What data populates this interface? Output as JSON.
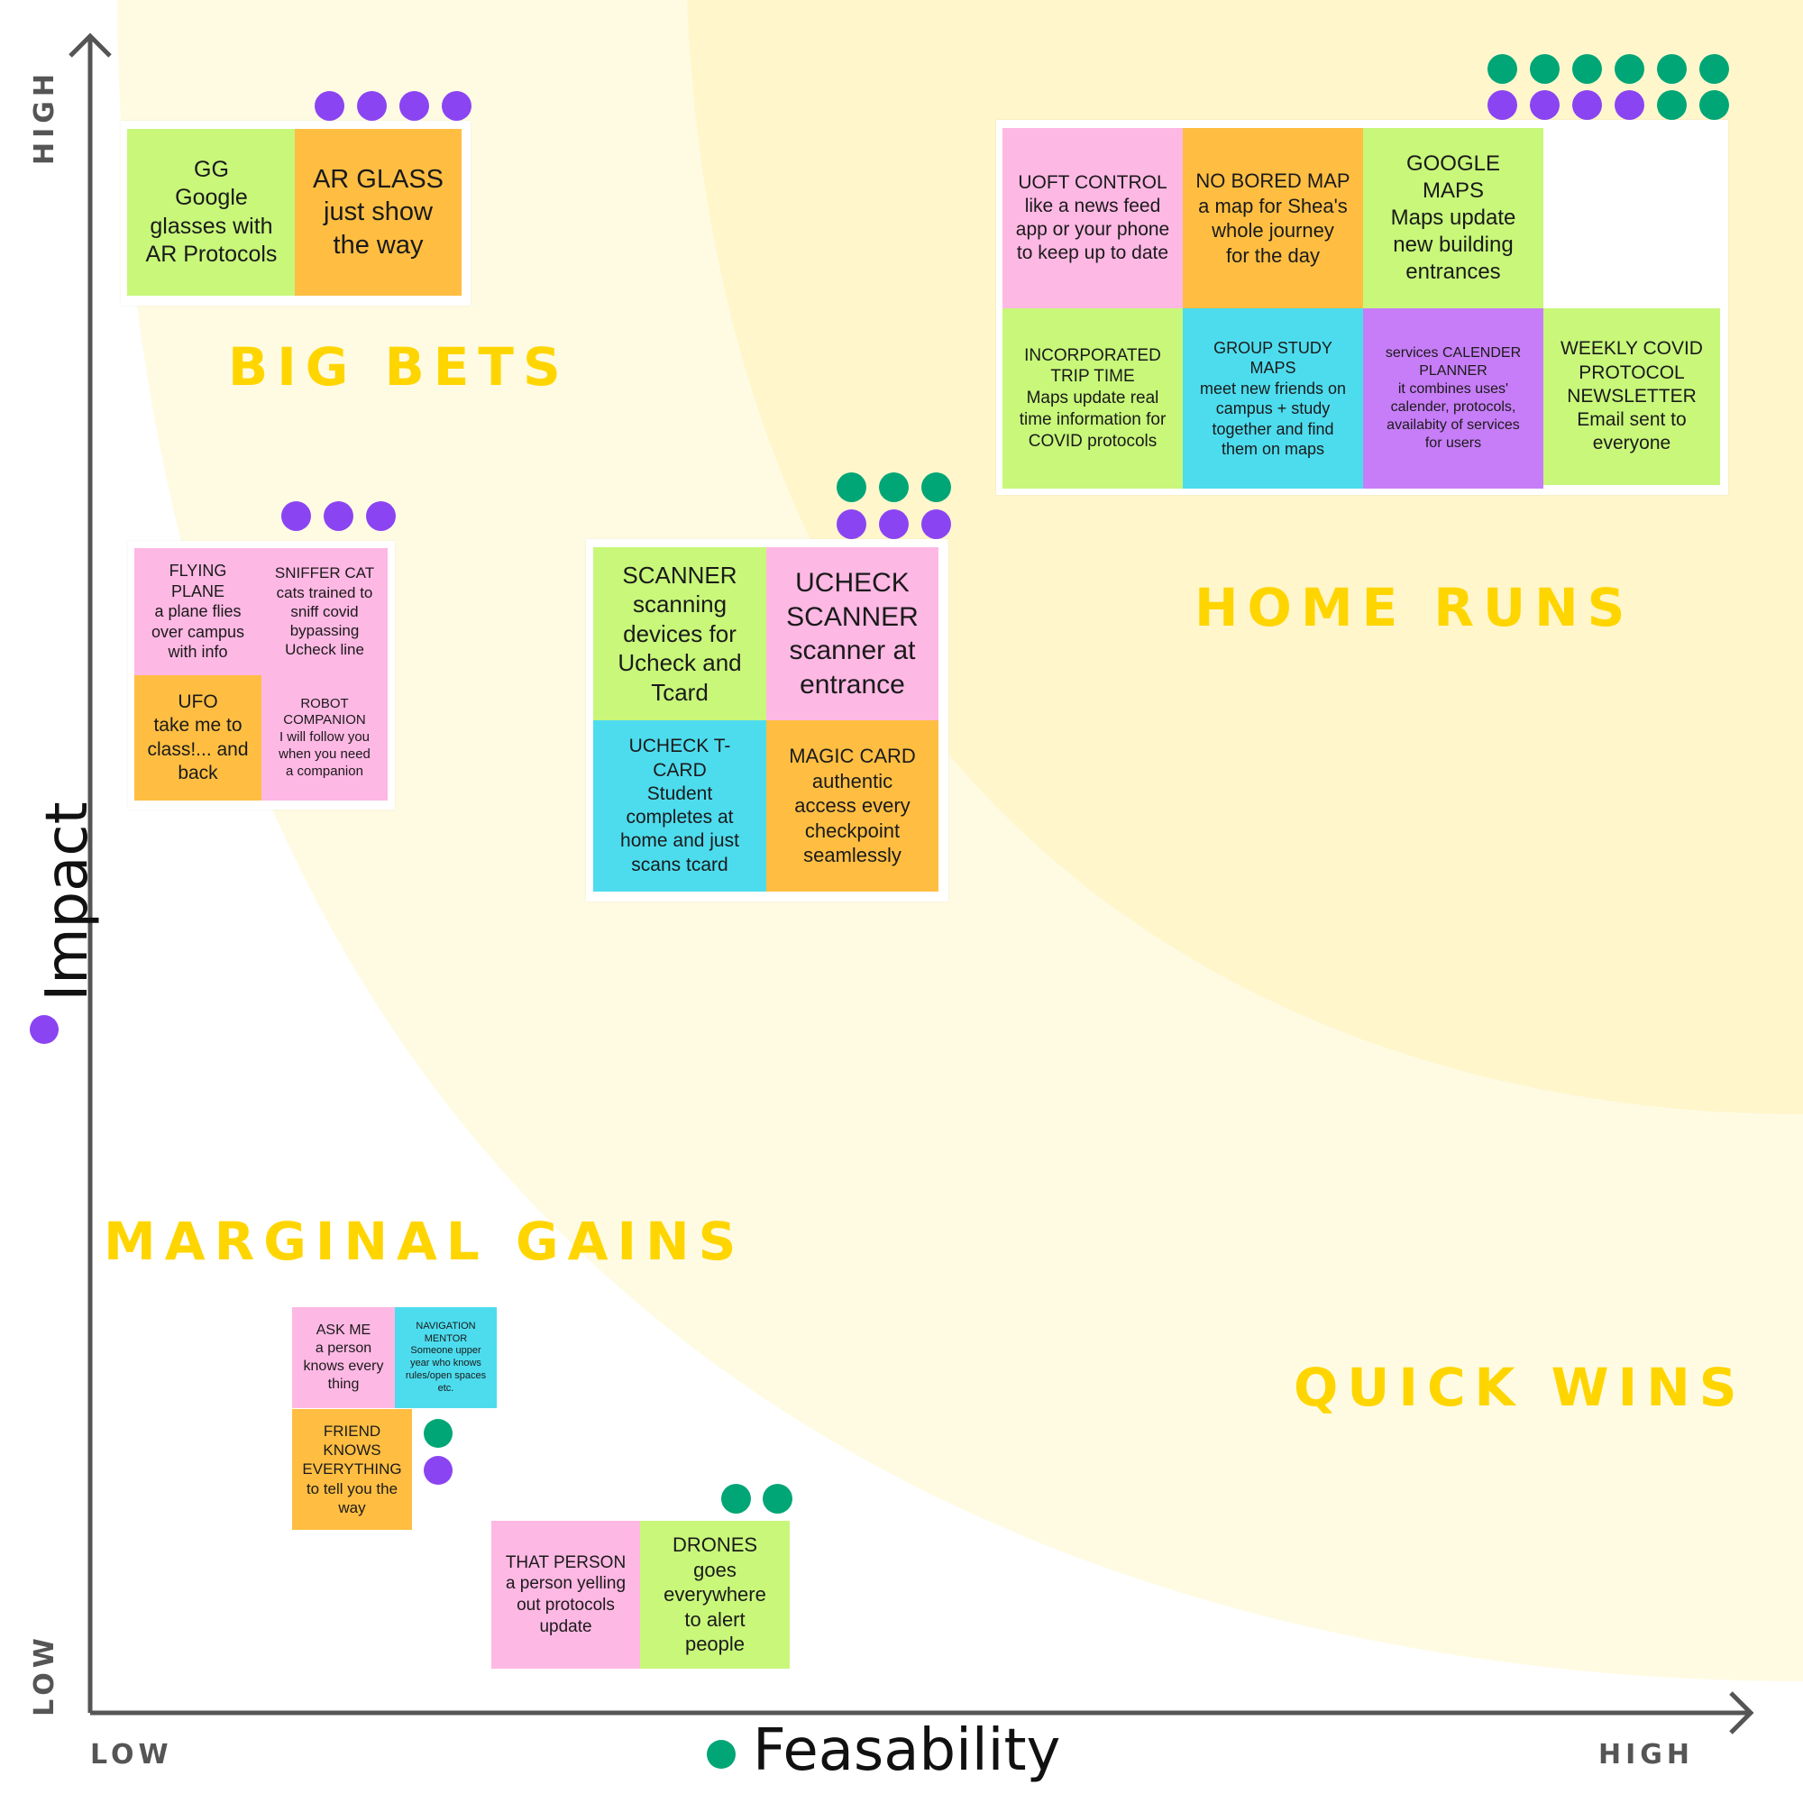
{
  "axes": {
    "y_title": "Impact",
    "x_title": "Feasability",
    "y_high": "HIGH",
    "y_low": "LOW",
    "x_low": "LOW",
    "x_high": "HIGH"
  },
  "quadrants": {
    "big_bets": "BIG BETS",
    "home_runs": "HOME RUNS",
    "marginal_gains": "MARGINAL GAINS",
    "quick_wins": "QUICK WINS"
  },
  "colors": {
    "green_note": "#C8F77A",
    "orange_note": "#FFBE42",
    "pink_note": "#FEB8E4",
    "cyan_note": "#4DDCEE",
    "purple_note": "#C77DF7",
    "impact_dot": "#8B44F2",
    "feasibility_dot": "#00A676",
    "label_yellow": "#FFD500",
    "band_outer": "#FFFBE3",
    "band_inner": "#FFF6CC"
  },
  "notes": {
    "gg": "GG\nGoogle\nglasses with\nAR Protocols",
    "ar_glass": "AR GLASS\njust show\nthe way",
    "flying_plane": "FLYING\nPLANE\na plane flies\nover campus\nwith info",
    "sniffer_cat": "SNIFFER CAT\ncats trained to\nsniff covid\nbypassing\nUcheck line",
    "ufo": "UFO\ntake me to\nclass!... and\nback",
    "robot_companion": "ROBOT\nCOMPANION\nI will follow you\nwhen you need\na companion",
    "scanner": "SCANNER\nscanning\ndevices for\nUcheck and\nTcard",
    "ucheck_scanner": "UCHECK\nSCANNER\nscanner at\nentrance",
    "ucheck_tcard": "UCHECK T-\nCARD\nStudent\ncompletes at\nhome and just\nscans tcard",
    "magic_card": "MAGIC CARD\nauthentic\naccess every\ncheckpoint\nseamlessly",
    "uoft_control": "UOFT CONTROL\nlike a news feed\napp or your phone\nto keep up to date",
    "no_bored_map": "NO BORED MAP\na map for Shea's\nwhole journey\nfor the day",
    "google_maps": "GOOGLE\nMAPS\nMaps update\nnew building\nentrances",
    "incorporated_trip_time": "INCORPORATED\nTRIP TIME\nMaps update real\ntime information for\nCOVID protocols",
    "group_study_maps": "GROUP STUDY\nMAPS\nmeet new friends on\ncampus + study\ntogether and find\nthem on maps",
    "services_calender": "services CALENDER\nPLANNER\nit combines uses'\ncalender, protocols,\navailabity of services\nfor users",
    "weekly_covid": "WEEKLY COVID\nPROTOCOL\nNEWSLETTER\nEmail sent to\neveryone",
    "ask_me": "ASK ME\na person\nknows every\nthing",
    "navigation_mentor": "NAVIGATION\nMENTOR\nSomeone upper\nyear who knows\nrules/open spaces\netc.",
    "friend_knows": "FRIEND\nKNOWS\nEVERYTHING\nto tell you the\nway",
    "that_person": "THAT PERSON\na person yelling\nout protocols\nupdate",
    "drones": "DRONES\ngoes\neverywhere\nto alert\npeople"
  },
  "votes": {
    "big_bets_group": {
      "impact": 4,
      "feasibility": 0
    },
    "sci_fi_group": {
      "impact": 3,
      "feasibility": 0
    },
    "scanner_group": {
      "impact": 3,
      "feasibility": 3
    },
    "home_runs_group": {
      "impact": 4,
      "feasibility": 8
    },
    "friend_knows": {
      "impact": 1,
      "feasibility": 1
    },
    "drones": {
      "impact": 0,
      "feasibility": 2
    }
  }
}
